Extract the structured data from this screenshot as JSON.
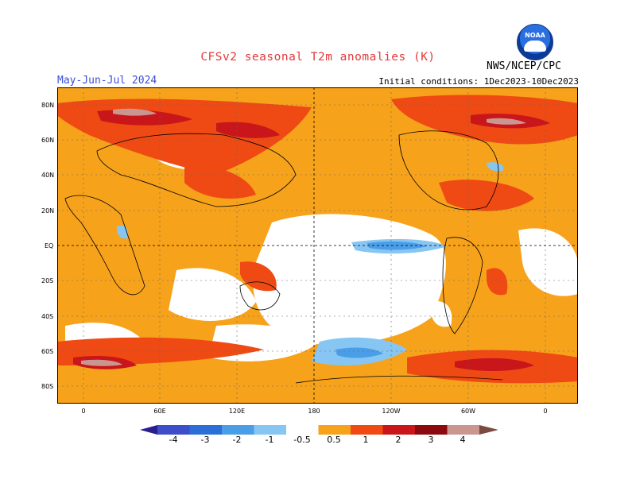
{
  "header": {
    "title": "CFSv2 seasonal T2m anomalies (K)",
    "period": "May-Jun-Jul 2024",
    "initial_conditions": "Initial conditions: 1Dec2023-10Dec2023",
    "agency": "NWS/NCEP/CPC",
    "logo_text": "NOAA"
  },
  "axes": {
    "lat_labels": [
      "80N",
      "60N",
      "40N",
      "20N",
      "EQ",
      "20S",
      "40S",
      "60S",
      "80S"
    ],
    "lon_labels": [
      "0",
      "60E",
      "120E",
      "180",
      "120W",
      "60W",
      "0"
    ]
  },
  "legend": {
    "labels": [
      "-4",
      "-3",
      "-2",
      "-1",
      "-0.5",
      "0.5",
      "1",
      "2",
      "3",
      "4"
    ],
    "colors": [
      "#2a1e8c",
      "#3e4ec8",
      "#2b6fd6",
      "#4a9ee8",
      "#87c6f2",
      "#ffffff",
      "#f7a21b",
      "#ef4a14",
      "#c8161a",
      "#8a0a10",
      "#c99790",
      "#7a4b40"
    ]
  }
}
